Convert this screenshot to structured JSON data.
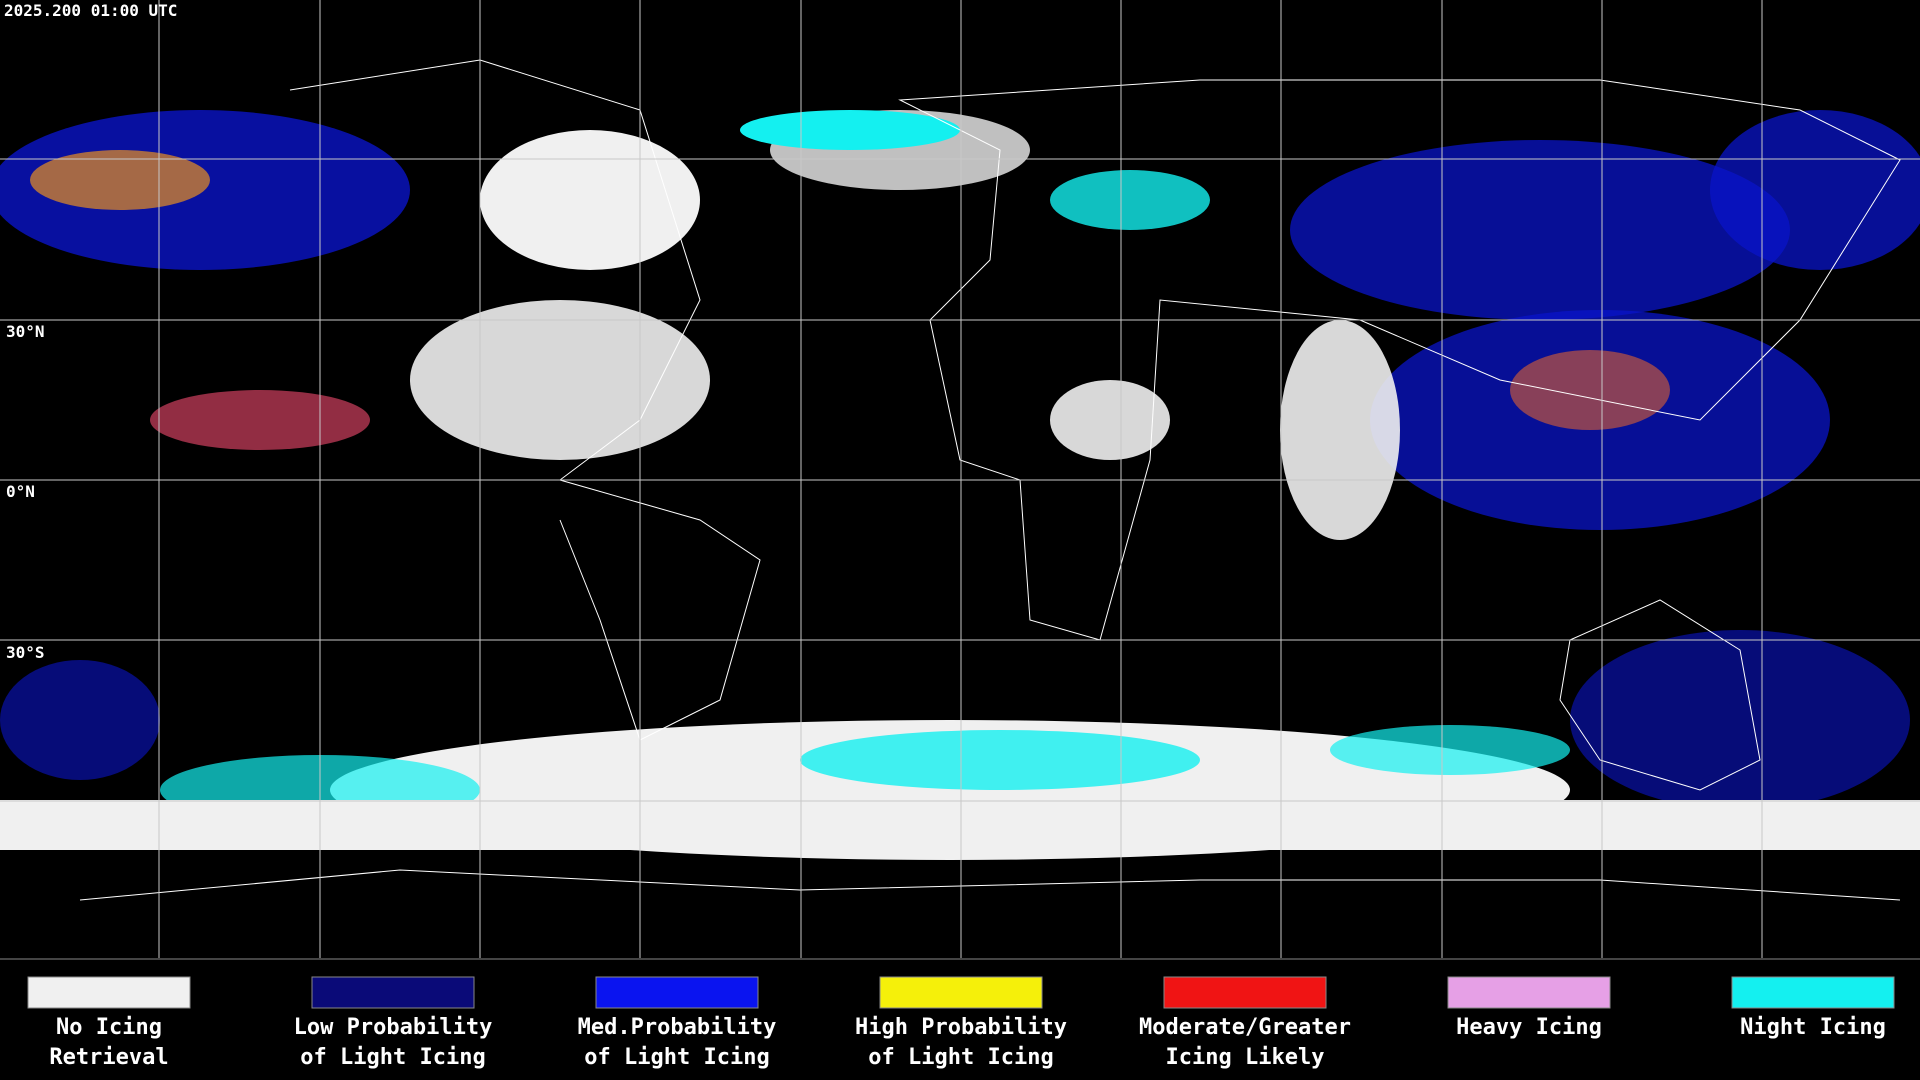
{
  "header": {
    "timestamp": "2025.200 01:00 UTC"
  },
  "latitude_labels": [
    "30°N",
    "0°N",
    "30°S"
  ],
  "legend": [
    {
      "color": "#f0f0f0",
      "lines": [
        "No Icing",
        "Retrieval"
      ]
    },
    {
      "color": "#0a0a78",
      "lines": [
        "Low Probability",
        "of Light Icing"
      ]
    },
    {
      "color": "#0a14f0",
      "lines": [
        "Med.Probability",
        "of Light Icing"
      ]
    },
    {
      "color": "#f5f00a",
      "lines": [
        "High Probability",
        "of Light Icing"
      ]
    },
    {
      "color": "#f01414",
      "lines": [
        "Moderate/Greater",
        "Icing Likely"
      ]
    },
    {
      "color": "#e6a0e6",
      "lines": [
        "Heavy Icing"
      ]
    },
    {
      "color": "#14f0f0",
      "lines": [
        "Night Icing"
      ]
    }
  ]
}
